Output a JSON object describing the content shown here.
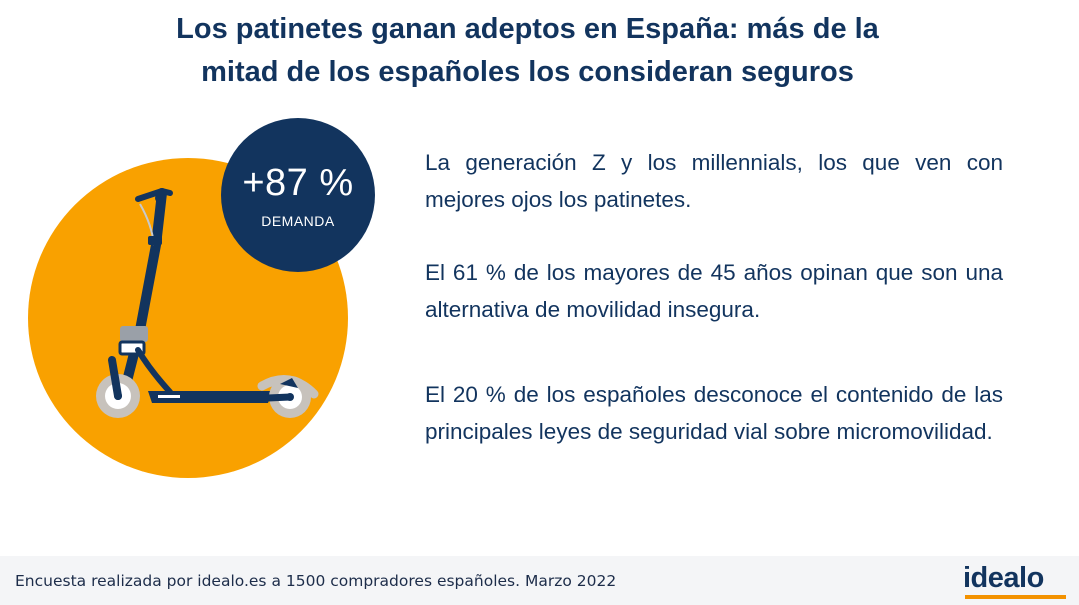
{
  "title": {
    "line1": "Los patinetes ganan adeptos en España: más de la",
    "line2": "mitad de los españoles los consideran seguros"
  },
  "stat": {
    "value": "+87 %",
    "label": "DEMANDA"
  },
  "facts": [
    "La generación Z y los millennials, los que ven con mejores ojos los patinetes.",
    "El 61 % de los mayores de 45 años opinan que son una alternativa de movilidad insegura.",
    "El 20 % de los españoles desconoce el contenido de las principales leyes de seguridad vial sobre micromovilidad."
  ],
  "footer": {
    "source": "Encuesta realizada por idealo.es a 1500 compradores españoles. Marzo 2022",
    "logo": "idealo"
  },
  "colors": {
    "navy": "#12345e",
    "orange": "#f9a100",
    "footer_bg": "#f4f5f7"
  }
}
